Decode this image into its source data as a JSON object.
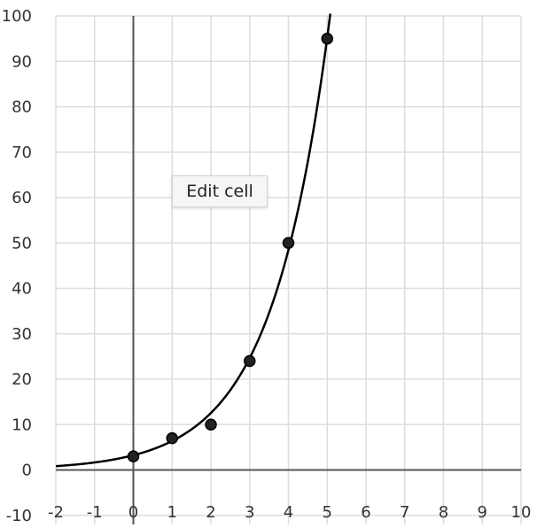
{
  "chart_data": {
    "type": "scatter",
    "title": "",
    "xlabel": "",
    "ylabel": "",
    "xlim": [
      -2,
      10
    ],
    "ylim": [
      -12,
      100
    ],
    "grid": true,
    "x_ticks": [
      -2,
      -1,
      0,
      1,
      2,
      3,
      4,
      5,
      6,
      7,
      8,
      9,
      10
    ],
    "y_ticks": [
      -10,
      0,
      10,
      20,
      30,
      40,
      50,
      60,
      70,
      80,
      90,
      100
    ],
    "points": [
      {
        "x": 0,
        "y": 3
      },
      {
        "x": 1,
        "y": 7
      },
      {
        "x": 2,
        "y": 10
      },
      {
        "x": 3,
        "y": 24
      },
      {
        "x": 4,
        "y": 50
      },
      {
        "x": 5,
        "y": 95
      }
    ],
    "fit_curve": {
      "type": "exponential",
      "a": 3.25,
      "b": 0.6755
    },
    "colors": {
      "grid": "#dddddd",
      "axis": "#555555",
      "curve": "#000000",
      "point_fill": "#222222",
      "point_stroke": "#000000"
    }
  },
  "context_menu": {
    "edit_cell_label": "Edit cell"
  }
}
